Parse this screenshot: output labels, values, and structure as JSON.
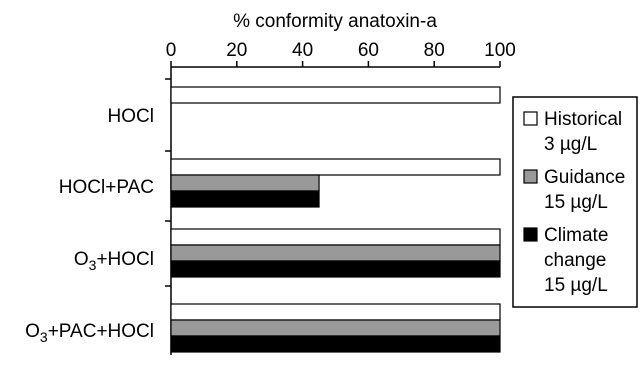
{
  "chart_data": {
    "type": "bar",
    "orientation": "horizontal",
    "title": "% conformity anatoxin-a",
    "xlim": [
      0,
      100
    ],
    "xticks": [
      0,
      20,
      40,
      60,
      80,
      100
    ],
    "grid": false,
    "legend_position": "right",
    "categories": [
      {
        "parts": [
          {
            "t": "HOCl",
            "sub": false
          }
        ]
      },
      {
        "parts": [
          {
            "t": "HOCl+PAC",
            "sub": false
          }
        ]
      },
      {
        "parts": [
          {
            "t": "O",
            "sub": false
          },
          {
            "t": "3",
            "sub": true
          },
          {
            "t": "+HOCl",
            "sub": false
          }
        ]
      },
      {
        "parts": [
          {
            "t": "O",
            "sub": false
          },
          {
            "t": "3",
            "sub": true
          },
          {
            "t": "+PAC+HOCl",
            "sub": false
          }
        ]
      }
    ],
    "series": [
      {
        "legend_lines": [
          "Historical",
          "3 µg/L"
        ],
        "color": "#ffffff",
        "values": [
          100,
          100,
          100,
          100
        ]
      },
      {
        "legend_lines": [
          "Guidance",
          "15 µg/L"
        ],
        "color": "#999999",
        "values": [
          null,
          45,
          100,
          100
        ]
      },
      {
        "legend_lines": [
          "Climate",
          "change",
          "15 µg/L"
        ],
        "color": "#000000",
        "values": [
          null,
          45,
          100,
          100
        ]
      }
    ]
  }
}
